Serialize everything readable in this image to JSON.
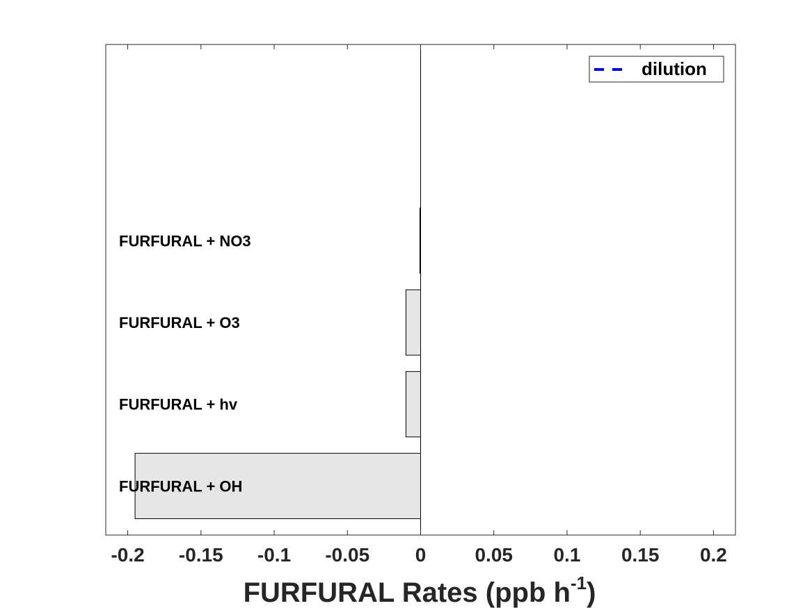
{
  "chart_data": {
    "type": "bar",
    "orientation": "horizontal",
    "categories": [
      "FURFURAL + OH",
      "FURFURAL + hv",
      "FURFURAL + O3",
      "FURFURAL + NO3"
    ],
    "values": [
      -0.195,
      -0.01,
      -0.01,
      -0.0005
    ],
    "xlabel": {
      "main": "FURFURAL Rates (ppb h",
      "sup": "-1",
      "close": ")"
    },
    "xlim": [
      -0.215,
      0.215
    ],
    "xticks": [
      -0.2,
      -0.15,
      -0.1,
      -0.05,
      0,
      0.05,
      0.1,
      0.15,
      0.2
    ],
    "xtick_labels": [
      "-0.2",
      "-0.15",
      "-0.1",
      "-0.05",
      "0",
      "0.05",
      "0.1",
      "0.15",
      "0.2"
    ],
    "ylim": [
      0.4,
      6.4
    ],
    "bar_color": "#e6e6e6",
    "bar_edge_color": "#000000",
    "legend": {
      "position": "top-right",
      "entries": [
        {
          "label": "dilution",
          "style": "dashed",
          "color": "#0000ff"
        }
      ]
    },
    "grid": false
  }
}
